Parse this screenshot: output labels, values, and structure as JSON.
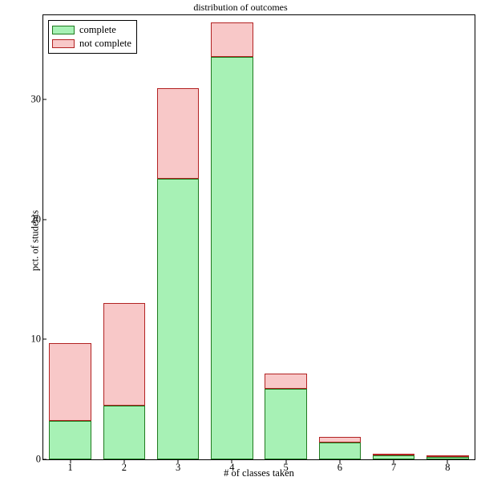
{
  "chart": {
    "type": "stacked-bar",
    "title": "distribution of outcomes",
    "xlabel": "# of classes taken",
    "ylabel": "pct. of students",
    "title_fontsize": 12,
    "label_fontsize": 12.5,
    "tick_fontsize": 12.5,
    "background_color": "#ffffff",
    "axis_color": "#000000",
    "ylim": [
      0,
      37
    ],
    "yticks": [
      0,
      10,
      20,
      30
    ],
    "categories": [
      "1",
      "2",
      "3",
      "4",
      "5",
      "6",
      "7",
      "8"
    ],
    "bar_width": 0.78,
    "series": [
      {
        "name": "complete",
        "fill_color": "#a7f1b5",
        "border_color": "#1f7a1f",
        "values": [
          3.2,
          4.5,
          23.4,
          33.5,
          5.9,
          1.4,
          0.35,
          0.22
        ]
      },
      {
        "name": "not complete",
        "fill_color": "#f8c8c8",
        "border_color": "#b22222",
        "values": [
          6.5,
          8.5,
          7.5,
          2.9,
          1.25,
          0.45,
          0.07,
          0.05
        ]
      }
    ],
    "legend": {
      "position": "top-left",
      "border_color": "#000000",
      "background": "#ffffff",
      "items": [
        {
          "label": "complete",
          "fill": "#a7f1b5",
          "border": "#1f7a1f"
        },
        {
          "label": "not complete",
          "fill": "#f8c8c8",
          "border": "#b22222"
        }
      ]
    }
  }
}
